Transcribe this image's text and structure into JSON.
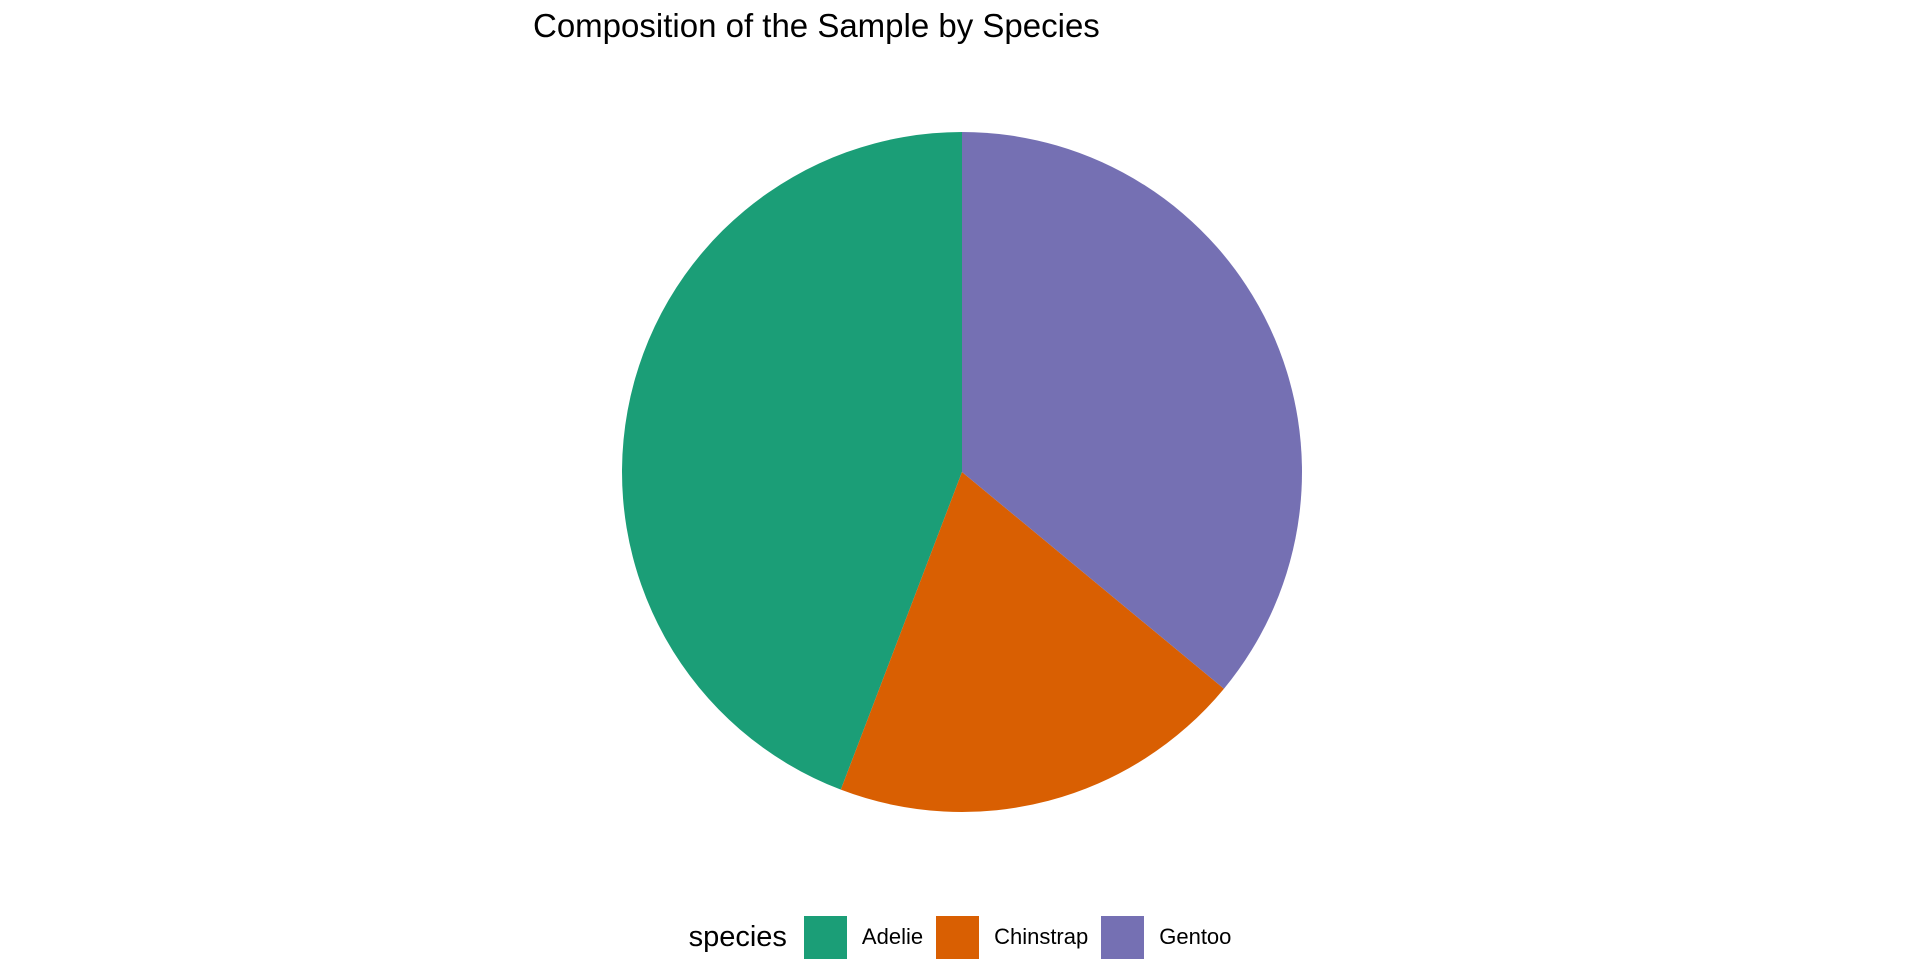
{
  "title": "Composition of the Sample by Species",
  "legend": {
    "title": "species",
    "items": [
      {
        "label": "Adelie",
        "color": "#1B9E77"
      },
      {
        "label": "Chinstrap",
        "color": "#D95F02"
      },
      {
        "label": "Gentoo",
        "color": "#7570B3"
      }
    ]
  },
  "chart_data": {
    "type": "pie",
    "title": "Composition of the Sample by Species",
    "categories": [
      "Adelie",
      "Chinstrap",
      "Gentoo"
    ],
    "values": [
      44.2,
      19.8,
      36.0
    ],
    "value_unit": "percent_of_sample",
    "colors": [
      "#1B9E77",
      "#D95F02",
      "#7570B3"
    ],
    "legend_title": "species",
    "legend_position": "bottom",
    "start_angle_deg": 90,
    "direction": "counterclockwise",
    "slice_borders": "none",
    "background": "#ffffff"
  }
}
